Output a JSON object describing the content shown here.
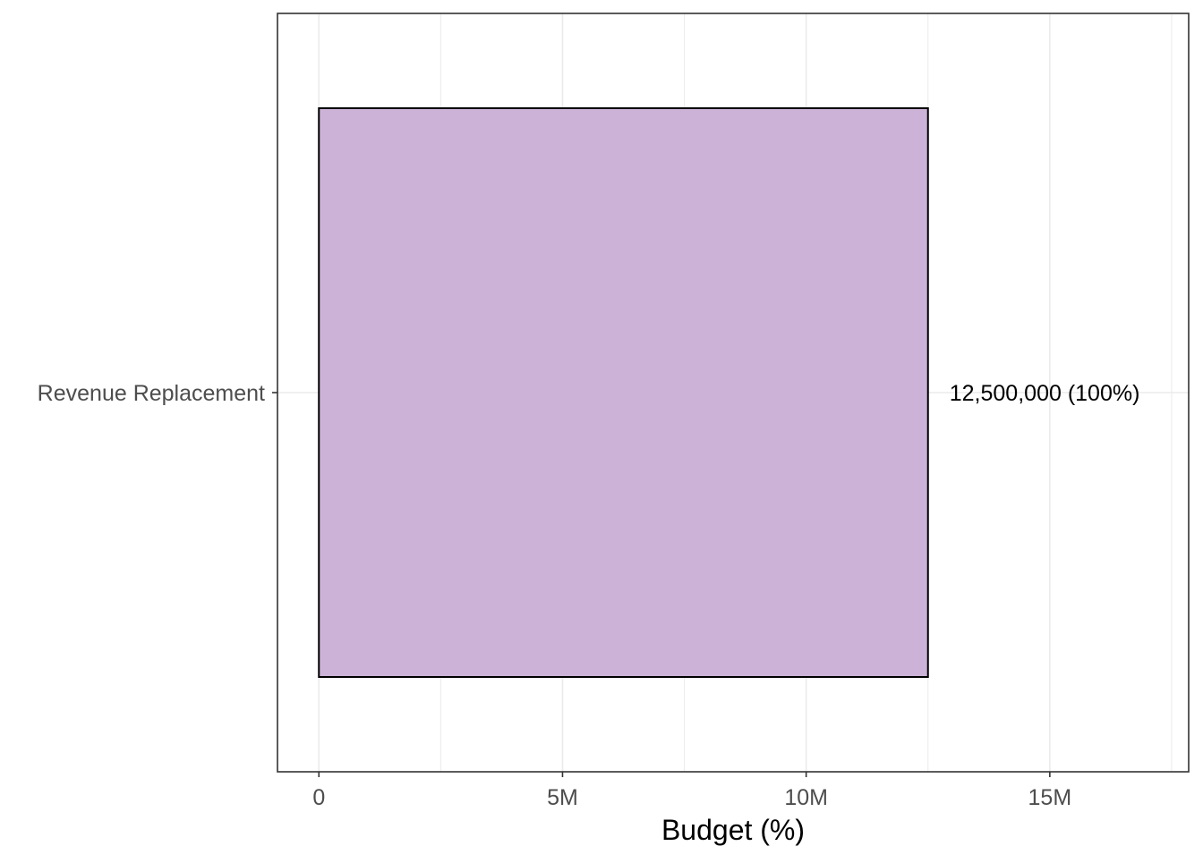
{
  "chart_data": {
    "type": "bar",
    "orientation": "horizontal",
    "categories": [
      "Revenue Replacement"
    ],
    "values": [
      12500000
    ],
    "data_labels": [
      "12,500,000 (100%)"
    ],
    "xlabel": "Budget (%)",
    "ylabel": "",
    "xlim": [
      -850000,
      17850000
    ],
    "x_ticks": [
      0,
      5000000,
      10000000,
      15000000
    ],
    "x_tick_labels": [
      "0",
      "5M",
      "10M",
      "15M"
    ],
    "grid": true,
    "legend": "none",
    "bar_color": "#CBB2D6",
    "bar_outline_color": "#000000",
    "panel_border_color": "#333333",
    "grid_color": "#EBEBEB"
  }
}
